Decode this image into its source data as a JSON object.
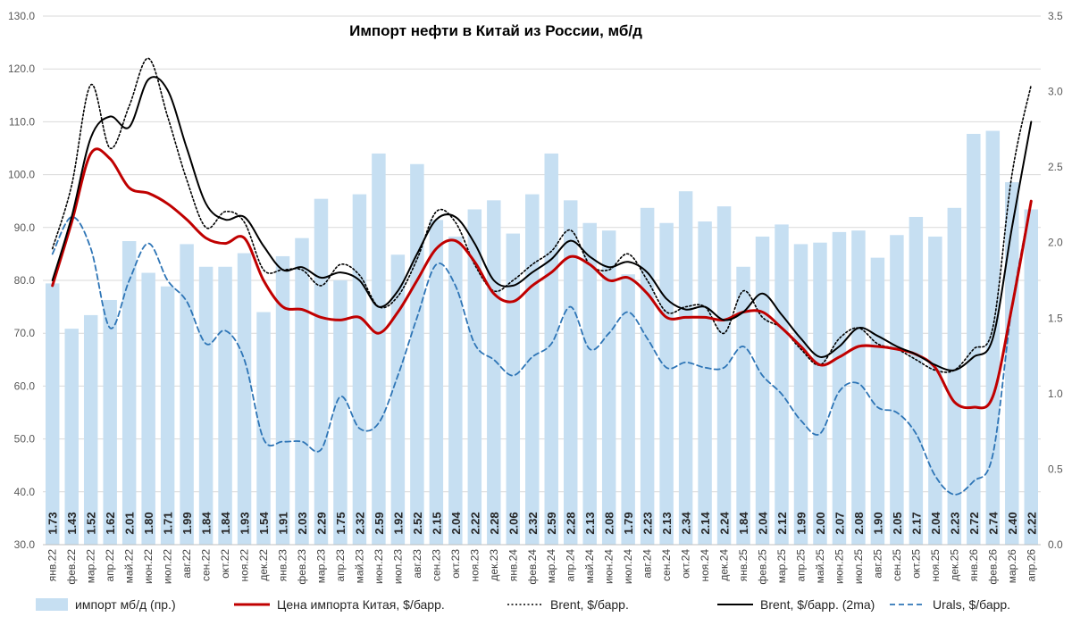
{
  "chart_data": {
    "type": "bar+line",
    "title": "Импорт нефти в Китай из России, мб/д",
    "categories": [
      "янв.22",
      "фев.22",
      "мар.22",
      "апр.22",
      "май.22",
      "июн.22",
      "июл.22",
      "авг.22",
      "сен.22",
      "окт.22",
      "ноя.22",
      "дек.22",
      "янв.23",
      "фев.23",
      "мар.23",
      "апр.23",
      "май.23",
      "июн.23",
      "июл.23",
      "авг.23",
      "сен.23",
      "окт.23",
      "ноя.23",
      "дек.23",
      "янв.24",
      "фев.24",
      "мар.24",
      "апр.24",
      "май.24",
      "июн.24",
      "июл.24",
      "авг.24",
      "сен.24",
      "окт.24",
      "ноя.24",
      "дек.24",
      "янв.25",
      "фев.25",
      "мар.25",
      "апр.25",
      "май.25",
      "июн.25",
      "июл.25",
      "авг.25",
      "сен.25",
      "окт.25",
      "ноя.25",
      "дек.25",
      "янв.26",
      "фев.26",
      "мар.26",
      "апр.26"
    ],
    "y_left": {
      "min": 30,
      "max": 130,
      "step": 10,
      "tick_labels": [
        "30.0",
        "40.0",
        "50.0",
        "60.0",
        "70.0",
        "80.0",
        "90.0",
        "100.0",
        "110.0",
        "120.0",
        "130.0"
      ]
    },
    "y_right": {
      "min": 0,
      "max": 3.5,
      "step": 0.5,
      "tick_labels": [
        "0.0",
        "0.5",
        "1.0",
        "1.5",
        "2.0",
        "2.5",
        "3.0",
        "3.5"
      ]
    },
    "grid": true,
    "legend_position": "bottom",
    "series": [
      {
        "name": "импорт мб/д (пр.)",
        "kind": "bar",
        "axis": "right",
        "color": "#c6dff2",
        "values": [
          1.73,
          1.43,
          1.52,
          1.62,
          2.01,
          1.8,
          1.71,
          1.99,
          1.84,
          1.84,
          1.93,
          1.54,
          1.91,
          2.03,
          2.29,
          1.75,
          2.32,
          2.59,
          1.92,
          2.52,
          2.15,
          2.04,
          2.22,
          2.28,
          2.06,
          2.32,
          2.59,
          2.28,
          2.13,
          2.08,
          1.79,
          2.23,
          2.13,
          2.34,
          2.14,
          2.24,
          1.84,
          2.04,
          2.12,
          1.99,
          2.0,
          2.07,
          2.08,
          1.9,
          2.05,
          2.17,
          2.04,
          2.23,
          2.72,
          2.74,
          2.4,
          2.22
        ],
        "labels": [
          "1.73",
          "1.43",
          "1.52",
          "1.62",
          "2.01",
          "1.80",
          "1.71",
          "1.99",
          "1.84",
          "1.84",
          "1.93",
          "1.54",
          "1.91",
          "2.03",
          "2.29",
          "1.75",
          "2.32",
          "2.59",
          "1.92",
          "2.52",
          "2.15",
          "2.04",
          "2.22",
          "2.28",
          "2.06",
          "2.32",
          "2.59",
          "2.28",
          "2.13",
          "2.08",
          "1.79",
          "2.23",
          "2.13",
          "2.34",
          "2.14",
          "2.24",
          "1.84",
          "2.04",
          "2.12",
          "1.99",
          "2.00",
          "2.07",
          "2.08",
          "1.90",
          "2.05",
          "2.17",
          "2.04",
          "2.23",
          "2.72",
          "2.74",
          "2.40",
          "2.22"
        ]
      },
      {
        "name": "Цена импорта Китая, $/барр.",
        "kind": "line",
        "axis": "left",
        "color": "#c00000",
        "style": "solid",
        "width": 3,
        "values": [
          79,
          91,
          104,
          103,
          97.5,
          96.5,
          94.5,
          91.5,
          88,
          87,
          88,
          80,
          75,
          74.5,
          73,
          72.5,
          73,
          70,
          74,
          80,
          86,
          87.5,
          83.5,
          77.5,
          76,
          79,
          81.5,
          84.5,
          83,
          80,
          80.5,
          77.5,
          73,
          73,
          73,
          72.5,
          74,
          74,
          71,
          67.5,
          64,
          65.5,
          67.5,
          67.5,
          67,
          66,
          63.5,
          57,
          56,
          58,
          75,
          95
        ]
      },
      {
        "name": "Brent, $/барр.",
        "kind": "line",
        "axis": "left",
        "color": "#000000",
        "style": "dotted",
        "width": 1.6,
        "values": [
          86,
          98,
          117,
          105,
          113,
          122,
          111,
          99,
          90,
          93,
          91,
          82,
          82,
          82,
          79,
          83,
          81,
          75,
          77,
          84,
          93,
          91,
          83,
          78,
          80,
          83,
          85.5,
          89.5,
          83,
          82,
          85,
          80,
          74,
          75,
          75,
          70,
          78,
          73,
          71,
          67,
          64,
          69,
          71,
          68,
          67,
          65,
          63,
          63,
          67,
          71,
          100,
          117
        ]
      },
      {
        "name": "Brent, $/барр. (2ma)",
        "kind": "line",
        "axis": "left",
        "color": "#000000",
        "style": "solid",
        "width": 2,
        "values": [
          80,
          92,
          107,
          111,
          109,
          118,
          116,
          105,
          94.5,
          91.5,
          92,
          86.5,
          82,
          82.5,
          80.5,
          81.5,
          80,
          75,
          78,
          85,
          91.5,
          92,
          87,
          80,
          79,
          81.5,
          84,
          87.5,
          84.5,
          82.5,
          83.5,
          81.5,
          76.5,
          74.5,
          75,
          72.5,
          74,
          77.5,
          73.5,
          69,
          65.5,
          67.5,
          71,
          69.5,
          67.5,
          66,
          64,
          63,
          65.5,
          69,
          90,
          110
        ]
      },
      {
        "name": "Urals, $/барр.",
        "kind": "line",
        "axis": "left",
        "color": "#2e75b6",
        "style": "dashed",
        "width": 1.8,
        "values": [
          85,
          92,
          86,
          71,
          80,
          87,
          80,
          76,
          68,
          70.5,
          65,
          50,
          49.5,
          49.5,
          48,
          58,
          52,
          53,
          62,
          73,
          83,
          79,
          68,
          65,
          62,
          65.5,
          68,
          75,
          67,
          70,
          74,
          69,
          63.5,
          64.5,
          63.5,
          63.5,
          67.5,
          62,
          58.5,
          53.5,
          51,
          59,
          60.5,
          56,
          55,
          51,
          43,
          39.5,
          42,
          47,
          75,
          95
        ]
      }
    ]
  }
}
